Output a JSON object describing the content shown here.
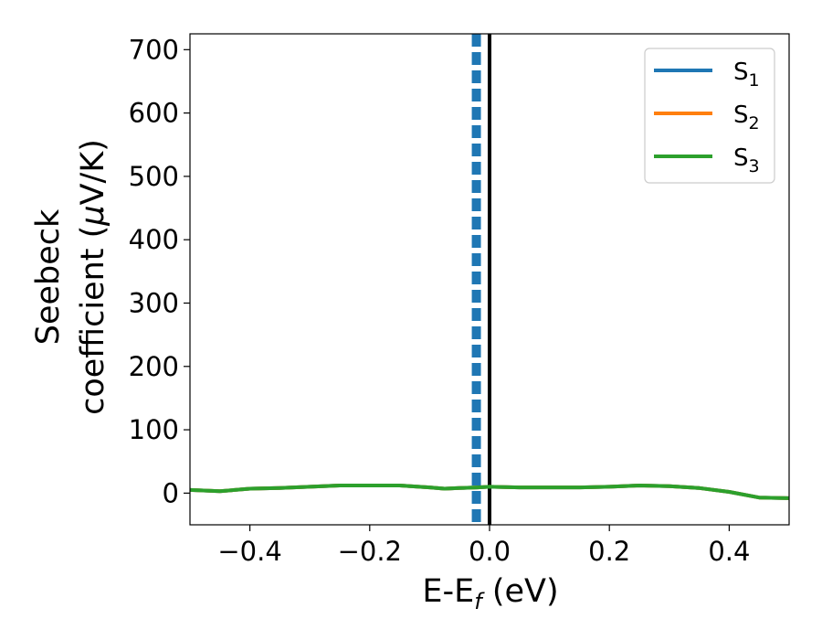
{
  "chart_data": {
    "type": "line",
    "xlabel": {
      "main": "E-E",
      "sub": "f",
      "suffix": " (eV)"
    },
    "ylabel": {
      "line1": "Seebeck",
      "line2_prefix": "coefficient  (",
      "mu": "μ",
      "line2_suffix": "V/K)"
    },
    "xlim": [
      -0.5,
      0.5
    ],
    "ylim": [
      -50,
      725
    ],
    "x_ticks": [
      -0.4,
      -0.2,
      0.0,
      0.2,
      0.4
    ],
    "x_tick_labels": [
      "−0.4",
      "−0.2",
      "0.0",
      "0.2",
      "0.4"
    ],
    "y_ticks": [
      0,
      100,
      200,
      300,
      400,
      500,
      600,
      700
    ],
    "y_tick_labels": [
      "0",
      "100",
      "200",
      "300",
      "400",
      "500",
      "600",
      "700"
    ],
    "grid": false,
    "legend_position": "top-right",
    "series": [
      {
        "name": "S",
        "sub": "1",
        "color": "#1f77b4",
        "x": [
          -0.5,
          -0.45,
          -0.4,
          -0.35,
          -0.3,
          -0.25,
          -0.2,
          -0.15,
          -0.1,
          -0.075,
          -0.05,
          -0.02,
          0.0,
          0.05,
          0.1,
          0.15,
          0.2,
          0.25,
          0.3,
          0.35,
          0.4,
          0.45,
          0.5
        ],
        "y": [
          5,
          3,
          7,
          8,
          10,
          12,
          12,
          12,
          9,
          7,
          8,
          9,
          10,
          9,
          9,
          9,
          10,
          12,
          11,
          8,
          2,
          -7,
          -8
        ]
      },
      {
        "name": "S",
        "sub": "2",
        "color": "#ff7f0e",
        "x": [
          -0.5,
          -0.45,
          -0.4,
          -0.35,
          -0.3,
          -0.25,
          -0.2,
          -0.15,
          -0.1,
          -0.075,
          -0.05,
          -0.02,
          0.0,
          0.05,
          0.1,
          0.15,
          0.2,
          0.25,
          0.3,
          0.35,
          0.4,
          0.45,
          0.5
        ],
        "y": [
          5,
          3,
          7,
          8,
          10,
          12,
          12,
          12,
          9,
          7,
          8,
          9,
          10,
          9,
          9,
          9,
          10,
          12,
          11,
          8,
          2,
          -7,
          -8
        ]
      },
      {
        "name": "S",
        "sub": "3",
        "color": "#2ca02c",
        "x": [
          -0.5,
          -0.45,
          -0.4,
          -0.35,
          -0.3,
          -0.25,
          -0.2,
          -0.15,
          -0.1,
          -0.075,
          -0.05,
          -0.02,
          0.0,
          0.05,
          0.1,
          0.15,
          0.2,
          0.25,
          0.3,
          0.35,
          0.4,
          0.45,
          0.5
        ],
        "y": [
          5,
          3,
          7,
          8,
          10,
          12,
          12,
          12,
          9,
          7,
          8,
          9,
          10,
          9,
          9,
          9,
          10,
          12,
          11,
          8,
          2,
          -7,
          -8
        ]
      }
    ],
    "vlines": [
      {
        "x": -0.022,
        "style": "dashed",
        "color": "#1f77b4"
      },
      {
        "x": 0.0,
        "style": "solid",
        "color": "#000000"
      }
    ]
  }
}
